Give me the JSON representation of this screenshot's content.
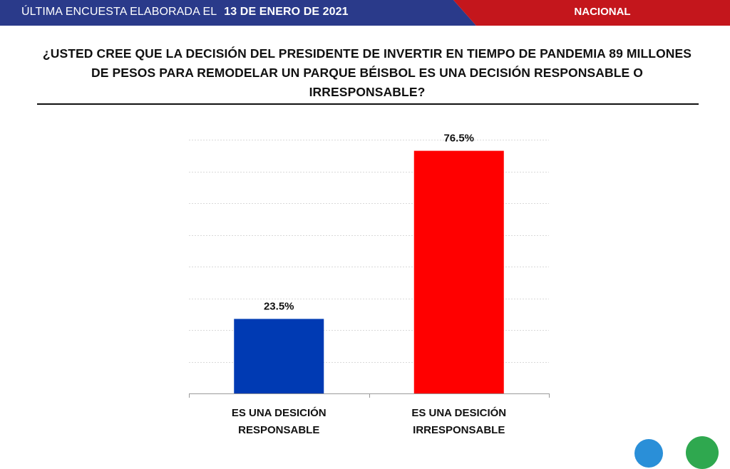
{
  "header": {
    "prefix": "ÚLTIMA ENCUESTA ELABORADA EL",
    "date": "13 DE ENERO DE 2021",
    "region": "NACIONAL"
  },
  "question": "¿USTED CREE QUE LA DECISIÓN DEL PRESIDENTE DE INVERTIR EN TIEMPO DE PANDEMIA 89 MILLONES DE PESOS PARA REMODELAR UN PARQUE BÉISBOL ES UNA DECISIÓN RESPONSABLE O IRRESPONSABLE?",
  "colors": {
    "header_blue": "#2a3a8a",
    "header_red": "#c4161c",
    "bar_blue": "#003ab3",
    "bar_red": "#ff0000"
  },
  "chart_data": {
    "type": "bar",
    "categories": [
      [
        "ES UNA DESICIÓN",
        "RESPONSABLE"
      ],
      [
        "ES UNA DESICIÓN",
        "IRRESPONSABLE"
      ]
    ],
    "values": [
      23.5,
      76.5
    ],
    "data_labels": [
      "23.5%",
      "76.5%"
    ],
    "bar_colors": [
      "#003ab3",
      "#ff0000"
    ],
    "ylim": [
      0,
      80
    ],
    "grid": true
  }
}
